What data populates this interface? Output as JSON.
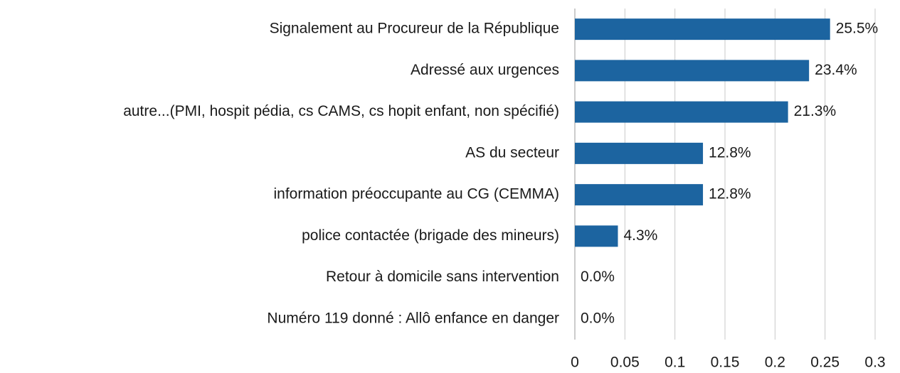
{
  "chart_data": {
    "type": "bar",
    "orientation": "horizontal",
    "categories": [
      "Signalement au Procureur de la République",
      "Adressé aux urgences",
      "autre...(PMI, hospit pédia, cs CAMS, cs hopit enfant, non spécifié)",
      "AS du secteur",
      "information préoccupante au CG (CEMMA)",
      "police contactée (brigade des mineurs)",
      "Retour à domicile sans intervention",
      "Numéro 119 donné : Allô enfance en danger"
    ],
    "values": [
      0.255,
      0.234,
      0.213,
      0.128,
      0.128,
      0.043,
      0,
      0
    ],
    "value_labels": [
      "25.5%",
      "23.4%",
      "21.3%",
      "12.8%",
      "12.8%",
      "4.3%",
      "0.0%",
      "0.0%"
    ],
    "color": "#1c64a0",
    "xlim": [
      0,
      0.3
    ],
    "xticks": [
      0,
      0.05,
      0.1,
      0.15,
      0.2,
      0.25,
      0.3
    ],
    "grid": true
  }
}
